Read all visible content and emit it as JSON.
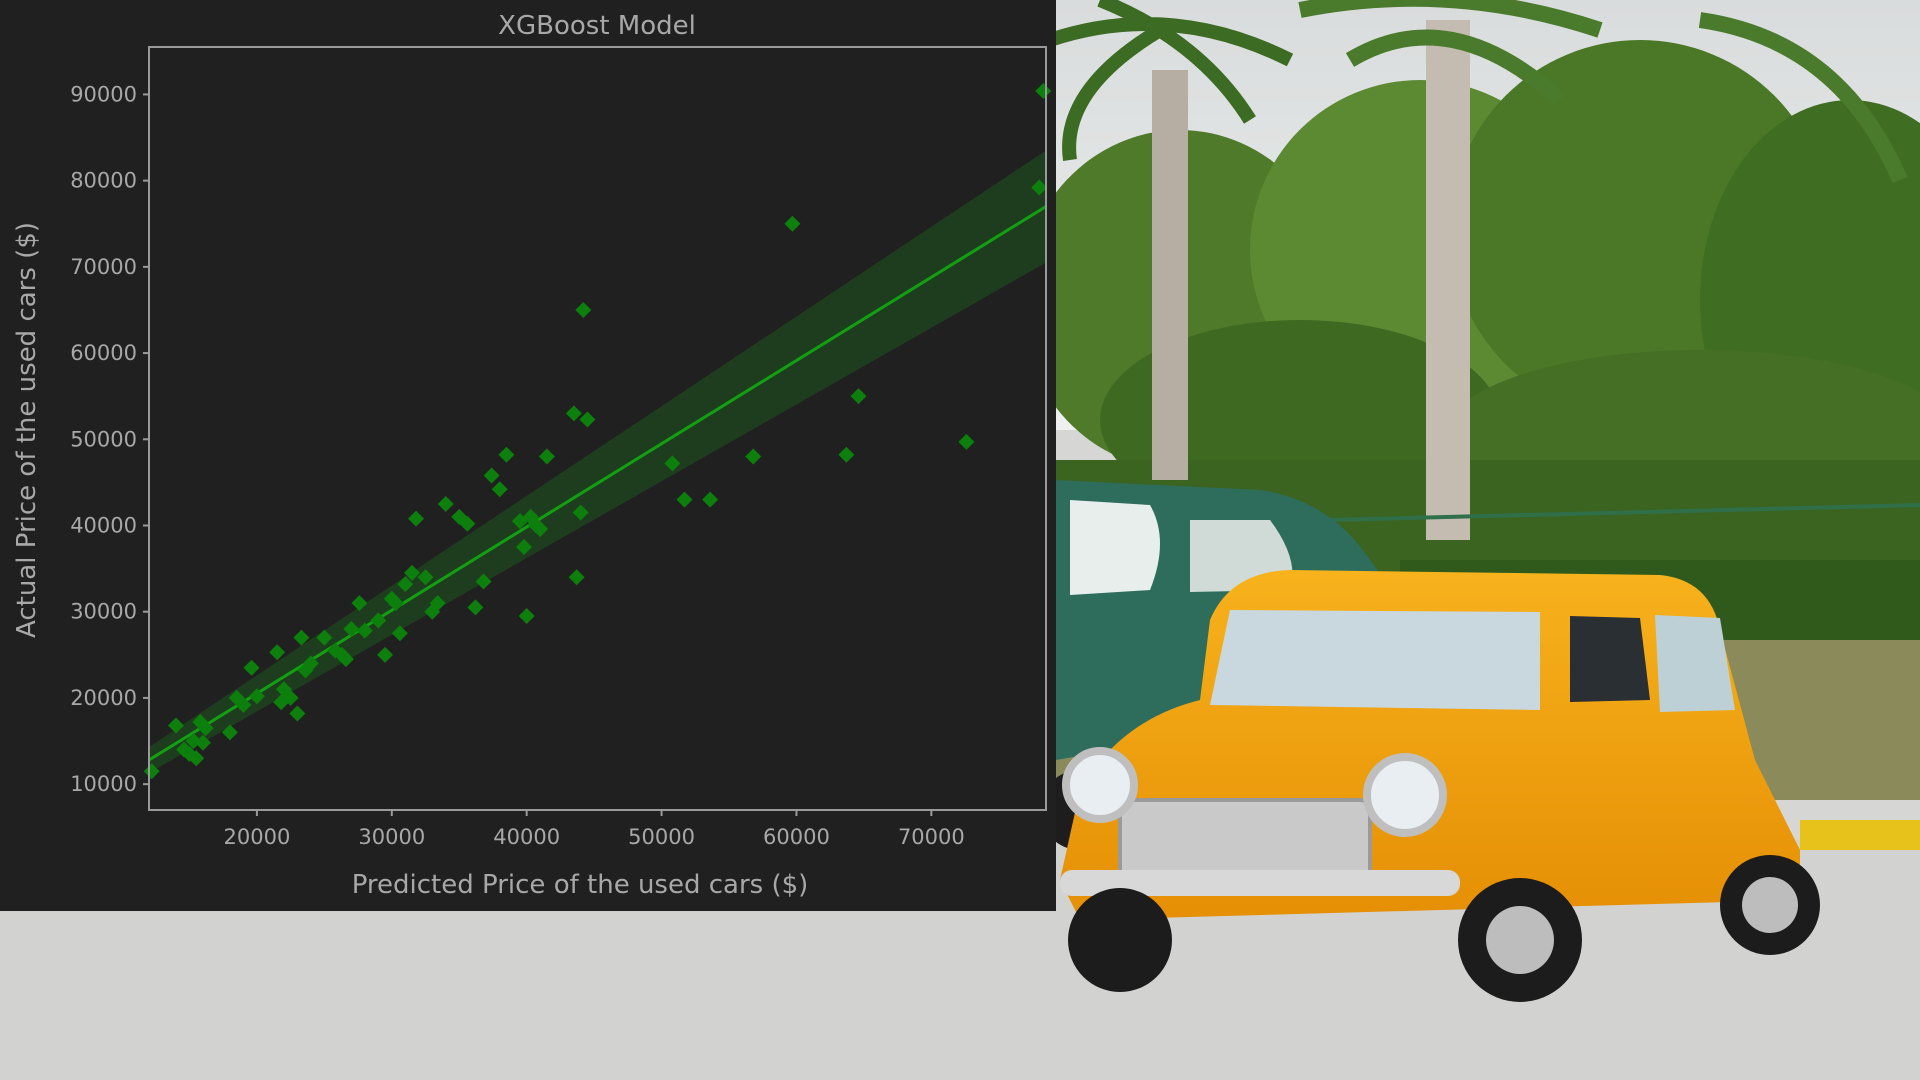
{
  "background_photo": {
    "subject": "classic yellow compact car parked in front of a green vintage sedan, palm trees and shrubs",
    "colors": {
      "car_body": "#f2a20c",
      "sky": "#e4e8ea",
      "foliage": "#4f7c2b",
      "pavement": "#d2d2d0",
      "vintage_car": "#2f6f5e"
    }
  },
  "chart_data": {
    "type": "scatter",
    "title": "XGBoost Model",
    "xlabel": "Predicted Price of the used cars ($)",
    "ylabel": "Actual Price of the used cars ($)",
    "xlim": [
      12000,
      78500
    ],
    "ylim": [
      7000,
      95500
    ],
    "xticks": [
      20000,
      30000,
      40000,
      50000,
      60000,
      70000
    ],
    "yticks": [
      10000,
      20000,
      30000,
      40000,
      50000,
      60000,
      70000,
      80000,
      90000
    ],
    "xtick_labels": [
      "20000",
      "30000",
      "40000",
      "50000",
      "60000",
      "70000"
    ],
    "ytick_labels": [
      "10000",
      "20000",
      "30000",
      "40000",
      "50000",
      "60000",
      "70000",
      "80000",
      "90000"
    ],
    "grid": false,
    "marker": "diamond",
    "colors": {
      "background": "#202020",
      "points": "#0c7f0c",
      "line": "#12a012",
      "band": "#1a8a1a",
      "text": "#a8a8a8",
      "spine": "#9a9a9a"
    },
    "regression": {
      "x": [
        12000,
        78500
      ],
      "y": [
        12800,
        77000
      ],
      "ci_band_half_width_at_ends": [
        1500,
        6500
      ]
    },
    "points": {
      "x": [
        12200,
        14000,
        14600,
        15000,
        15300,
        15500,
        15800,
        16000,
        16200,
        18000,
        18500,
        19000,
        19600,
        20000,
        21500,
        21800,
        22000,
        22500,
        23000,
        23300,
        23600,
        24000,
        25000,
        25800,
        26300,
        26600,
        27000,
        27600,
        28000,
        29000,
        29500,
        30000,
        30300,
        30600,
        31000,
        31500,
        31800,
        32500,
        33000,
        33400,
        34000,
        35000,
        35600,
        36200,
        36800,
        37400,
        38000,
        38500,
        39500,
        39800,
        40000,
        40300,
        40700,
        41000,
        41500,
        43500,
        43700,
        44000,
        44200,
        44500,
        50800,
        51700,
        53600,
        56800,
        59700,
        63700,
        64600,
        72600,
        78000,
        78300
      ],
      "y": [
        11500,
        16800,
        14000,
        13500,
        15000,
        13000,
        17200,
        14800,
        16500,
        16000,
        20000,
        19200,
        23500,
        20200,
        25300,
        19500,
        21000,
        20000,
        18200,
        27000,
        23200,
        24000,
        27000,
        25500,
        25000,
        24500,
        28000,
        31000,
        27800,
        29000,
        25000,
        31500,
        31000,
        27500,
        33200,
        34500,
        40800,
        34000,
        30000,
        31000,
        42500,
        41000,
        40200,
        30500,
        33500,
        45800,
        44200,
        48200,
        40500,
        37500,
        29500,
        41000,
        40000,
        39600,
        48000,
        53000,
        34000,
        41500,
        65000,
        52300,
        47200,
        43000,
        43000,
        48000,
        75000,
        48200,
        55000,
        49700,
        79200,
        90400
      ]
    }
  }
}
